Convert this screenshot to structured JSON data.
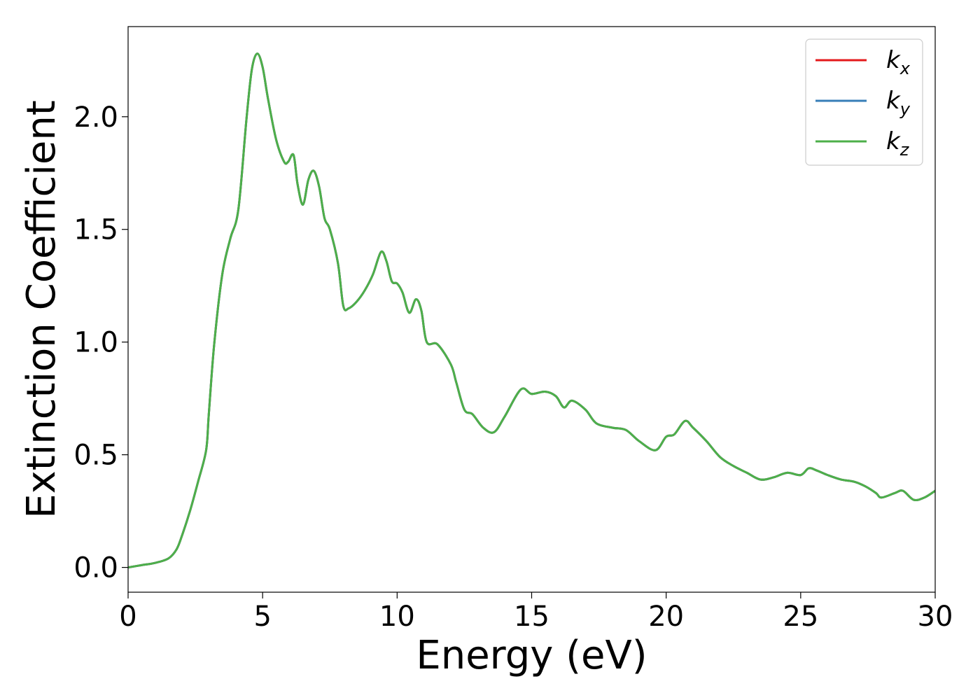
{
  "chart_data": {
    "type": "line",
    "title": "",
    "xlabel": "Energy (eV)",
    "ylabel": "Extinction Coefficient",
    "xlim": [
      0,
      30
    ],
    "ylim": [
      -0.11,
      2.4
    ],
    "xticks": [
      0,
      5,
      10,
      15,
      20,
      25,
      30
    ],
    "xtick_labels": [
      "0",
      "5",
      "10",
      "15",
      "20",
      "25",
      "30"
    ],
    "yticks": [
      0.0,
      0.5,
      1.0,
      1.5,
      2.0
    ],
    "ytick_labels": [
      "0.0",
      "0.5",
      "1.0",
      "1.5",
      "2.0"
    ],
    "grid": false,
    "legend_position": "top-right",
    "x": [
      0,
      0.5,
      1.0,
      1.5,
      1.8,
      2.0,
      2.3,
      2.6,
      2.9,
      3.0,
      3.2,
      3.5,
      3.8,
      4.1,
      4.4,
      4.6,
      4.8,
      5.0,
      5.2,
      5.5,
      5.8,
      5.95,
      6.15,
      6.3,
      6.5,
      6.7,
      6.9,
      7.1,
      7.3,
      7.5,
      7.8,
      8.0,
      8.2,
      8.5,
      8.8,
      9.1,
      9.4,
      9.6,
      9.8,
      10.0,
      10.2,
      10.45,
      10.7,
      10.9,
      11.1,
      11.5,
      12.0,
      12.2,
      12.5,
      12.8,
      13.2,
      13.6,
      14.0,
      14.6,
      15.0,
      15.5,
      15.9,
      16.2,
      16.5,
      17.0,
      17.4,
      18.0,
      18.5,
      19.0,
      19.6,
      20.0,
      20.3,
      20.7,
      21.0,
      21.5,
      22.0,
      22.5,
      23.0,
      23.5,
      24.0,
      24.5,
      25.0,
      25.3,
      25.6,
      26.0,
      26.5,
      27.0,
      27.4,
      27.8,
      28.0,
      28.5,
      28.8,
      29.2,
      29.6,
      30.0
    ],
    "series": [
      {
        "name": "k_x",
        "values": [
          0.0,
          0.01,
          0.02,
          0.04,
          0.08,
          0.14,
          0.25,
          0.38,
          0.52,
          0.68,
          0.99,
          1.3,
          1.46,
          1.59,
          1.99,
          2.21,
          2.28,
          2.22,
          2.08,
          1.9,
          1.8,
          1.8,
          1.83,
          1.7,
          1.61,
          1.72,
          1.76,
          1.69,
          1.55,
          1.5,
          1.35,
          1.16,
          1.15,
          1.18,
          1.23,
          1.3,
          1.4,
          1.36,
          1.27,
          1.26,
          1.22,
          1.13,
          1.19,
          1.14,
          1.0,
          0.99,
          0.9,
          0.82,
          0.7,
          0.68,
          0.62,
          0.6,
          0.67,
          0.79,
          0.77,
          0.78,
          0.76,
          0.71,
          0.74,
          0.7,
          0.64,
          0.62,
          0.61,
          0.56,
          0.52,
          0.58,
          0.59,
          0.65,
          0.62,
          0.56,
          0.49,
          0.45,
          0.42,
          0.39,
          0.4,
          0.42,
          0.41,
          0.44,
          0.43,
          0.41,
          0.39,
          0.38,
          0.36,
          0.33,
          0.31,
          0.33,
          0.34,
          0.3,
          0.31,
          0.34
        ]
      },
      {
        "name": "k_y",
        "values": [
          0.0,
          0.01,
          0.02,
          0.04,
          0.08,
          0.14,
          0.25,
          0.38,
          0.52,
          0.68,
          0.99,
          1.3,
          1.46,
          1.59,
          1.99,
          2.21,
          2.28,
          2.22,
          2.08,
          1.9,
          1.8,
          1.8,
          1.83,
          1.7,
          1.61,
          1.72,
          1.76,
          1.69,
          1.55,
          1.5,
          1.35,
          1.16,
          1.15,
          1.18,
          1.23,
          1.3,
          1.4,
          1.36,
          1.27,
          1.26,
          1.22,
          1.13,
          1.19,
          1.14,
          1.0,
          0.99,
          0.9,
          0.82,
          0.7,
          0.68,
          0.62,
          0.6,
          0.67,
          0.79,
          0.77,
          0.78,
          0.76,
          0.71,
          0.74,
          0.7,
          0.64,
          0.62,
          0.61,
          0.56,
          0.52,
          0.58,
          0.59,
          0.65,
          0.62,
          0.56,
          0.49,
          0.45,
          0.42,
          0.39,
          0.4,
          0.42,
          0.41,
          0.44,
          0.43,
          0.41,
          0.39,
          0.38,
          0.36,
          0.33,
          0.31,
          0.33,
          0.34,
          0.3,
          0.31,
          0.34
        ]
      },
      {
        "name": "k_z",
        "values": [
          0.0,
          0.01,
          0.02,
          0.04,
          0.08,
          0.14,
          0.25,
          0.38,
          0.52,
          0.68,
          0.99,
          1.3,
          1.46,
          1.59,
          1.99,
          2.21,
          2.28,
          2.22,
          2.08,
          1.9,
          1.8,
          1.8,
          1.83,
          1.7,
          1.61,
          1.72,
          1.76,
          1.69,
          1.55,
          1.5,
          1.35,
          1.16,
          1.15,
          1.18,
          1.23,
          1.3,
          1.4,
          1.36,
          1.27,
          1.26,
          1.22,
          1.13,
          1.19,
          1.14,
          1.0,
          0.99,
          0.9,
          0.82,
          0.7,
          0.68,
          0.62,
          0.6,
          0.67,
          0.79,
          0.77,
          0.78,
          0.76,
          0.71,
          0.74,
          0.7,
          0.64,
          0.62,
          0.61,
          0.56,
          0.52,
          0.58,
          0.59,
          0.65,
          0.62,
          0.56,
          0.49,
          0.45,
          0.42,
          0.39,
          0.4,
          0.42,
          0.41,
          0.44,
          0.43,
          0.41,
          0.39,
          0.38,
          0.36,
          0.33,
          0.31,
          0.33,
          0.34,
          0.3,
          0.31,
          0.34
        ]
      }
    ],
    "legend": [
      {
        "base": "k",
        "sub": "x",
        "color": "#e41a1c"
      },
      {
        "base": "k",
        "sub": "y",
        "color": "#377eb8"
      },
      {
        "base": "k",
        "sub": "z",
        "color": "#4daf4a"
      }
    ]
  }
}
